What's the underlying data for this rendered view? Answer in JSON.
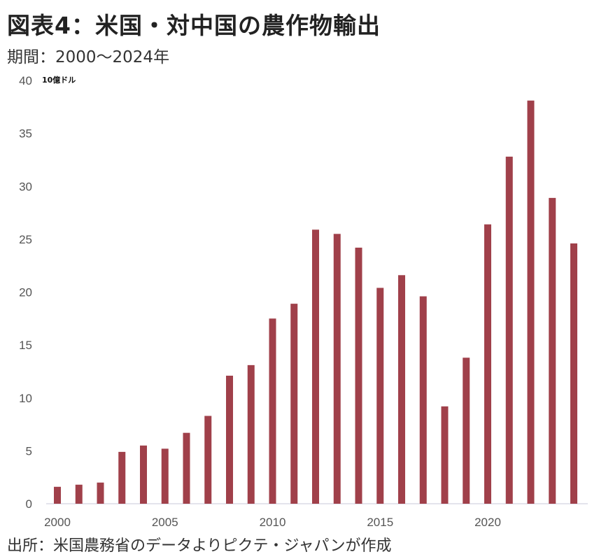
{
  "title": "図表4：米国・対中国の農作物輸出",
  "subtitle": "期間：2000～2024年",
  "footer": "出所：米国農務省のデータよりピクテ・ジャパンが作成",
  "chart_data": {
    "type": "bar",
    "title": "図表4：米国・対中国の農作物輸出",
    "ylabel": "10億ドル",
    "xlabel": "",
    "ylim": [
      0,
      40
    ],
    "yticks": [
      0,
      5,
      10,
      15,
      20,
      25,
      30,
      35,
      40
    ],
    "xtick_labels": [
      "2000",
      "2005",
      "2010",
      "2015",
      "2020"
    ],
    "categories": [
      2000,
      2001,
      2002,
      2003,
      2004,
      2005,
      2006,
      2007,
      2008,
      2009,
      2010,
      2011,
      2012,
      2013,
      2014,
      2015,
      2016,
      2017,
      2018,
      2019,
      2020,
      2021,
      2022,
      2023,
      2024
    ],
    "values": [
      1.6,
      1.8,
      2.0,
      4.9,
      5.5,
      5.2,
      6.7,
      8.3,
      12.1,
      13.1,
      17.5,
      18.9,
      25.9,
      25.5,
      24.2,
      20.4,
      21.6,
      19.6,
      9.2,
      13.8,
      26.4,
      32.8,
      38.1,
      28.9,
      24.6
    ],
    "grid": false,
    "legend": "none",
    "bar_color": "#a0404a",
    "axis_color": "#dcdce6"
  }
}
